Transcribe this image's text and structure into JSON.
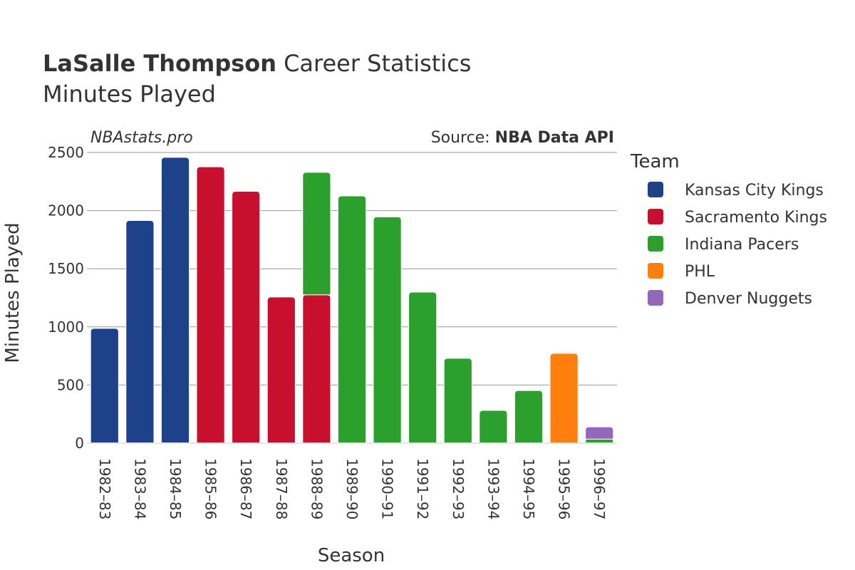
{
  "header": {
    "title_bold": "LaSalle Thompson",
    "title_rest": "Career Statistics",
    "subtitle": "Minutes Played",
    "watermark": "NBAstats.pro",
    "source_prefix": "Source: ",
    "source_bold": "NBA Data API"
  },
  "colors": {
    "Kansas City Kings": "#1d428a",
    "Sacramento Kings": "#c8102e",
    "Indiana Pacers": "#2ca02c",
    "PHL": "#ff7f0e",
    "Denver Nuggets": "#9467bd"
  },
  "chart_data": {
    "type": "bar",
    "stacked": true,
    "xlabel": "Season",
    "ylabel": "Minutes Played",
    "ylim": [
      0,
      2500
    ],
    "yticks": [
      0,
      500,
      1000,
      1500,
      2000,
      2500
    ],
    "grid": true,
    "legend_title": "Team",
    "legend_position": "right",
    "categories": [
      "1982–83",
      "1983–84",
      "1984–85",
      "1985–86",
      "1986–87",
      "1987–88",
      "1988–89",
      "1989–90",
      "1990–91",
      "1991–92",
      "1992–93",
      "1993–94",
      "1994–95",
      "1995–96",
      "1996–97"
    ],
    "series": [
      {
        "name": "Kansas City Kings",
        "values": [
          987,
          1915,
          2458,
          0,
          0,
          0,
          0,
          0,
          0,
          0,
          0,
          0,
          0,
          0,
          0
        ]
      },
      {
        "name": "Sacramento Kings",
        "values": [
          0,
          0,
          0,
          2377,
          2166,
          1257,
          1276,
          0,
          0,
          0,
          0,
          0,
          0,
          0,
          0
        ]
      },
      {
        "name": "Indiana Pacers",
        "values": [
          0,
          0,
          0,
          0,
          0,
          0,
          1053,
          2126,
          1946,
          1299,
          730,
          282,
          453,
          0,
          35
        ]
      },
      {
        "name": "PHL",
        "values": [
          0,
          0,
          0,
          0,
          0,
          0,
          0,
          0,
          0,
          0,
          0,
          0,
          0,
          773,
          0
        ]
      },
      {
        "name": "Denver Nuggets",
        "values": [
          0,
          0,
          0,
          0,
          0,
          0,
          0,
          0,
          0,
          0,
          0,
          0,
          0,
          0,
          105
        ]
      }
    ]
  }
}
